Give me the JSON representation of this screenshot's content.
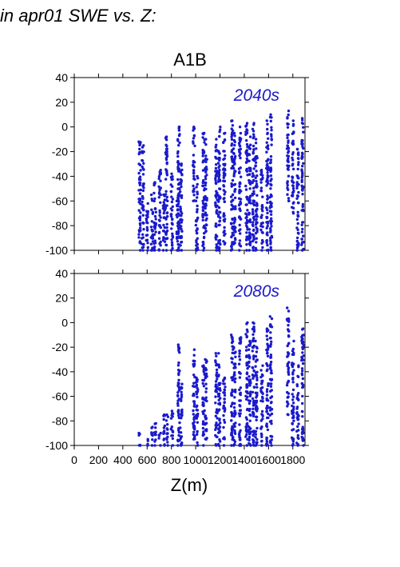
{
  "heading": "in apr01 SWE vs. Z:",
  "title": "A1B",
  "colors": {
    "points": "#1a1acc",
    "axis": "#000000"
  },
  "chart_data": [
    {
      "type": "scatter",
      "period_label": "2040s",
      "xlabel": "",
      "ylabel": "",
      "xlim": [
        0,
        1900
      ],
      "ylim": [
        -100,
        40
      ],
      "yticks": [
        40,
        20,
        0,
        -20,
        -40,
        -60,
        -80,
        -100
      ],
      "columns": [
        {
          "x": 540,
          "ymin": -100,
          "ymax": -12
        },
        {
          "x": 565,
          "ymin": -100,
          "ymax": -15
        },
        {
          "x": 600,
          "ymin": -100,
          "ymax": -62
        },
        {
          "x": 640,
          "ymin": -100,
          "ymax": -55
        },
        {
          "x": 665,
          "ymin": -100,
          "ymax": -45
        },
        {
          "x": 705,
          "ymin": -100,
          "ymax": -35
        },
        {
          "x": 740,
          "ymin": -100,
          "ymax": -55
        },
        {
          "x": 760,
          "ymin": -100,
          "ymax": -8
        },
        {
          "x": 805,
          "ymin": -100,
          "ymax": -38
        },
        {
          "x": 850,
          "ymin": -100,
          "ymax": -60
        },
        {
          "x": 860,
          "ymin": -100,
          "ymax": 0
        },
        {
          "x": 880,
          "ymin": -100,
          "ymax": -30
        },
        {
          "x": 985,
          "ymin": -60,
          "ymax": 0
        },
        {
          "x": 1010,
          "ymin": -100,
          "ymax": -40
        },
        {
          "x": 1065,
          "ymin": -100,
          "ymax": -5
        },
        {
          "x": 1085,
          "ymin": -85,
          "ymax": -10
        },
        {
          "x": 1170,
          "ymin": -100,
          "ymax": -10
        },
        {
          "x": 1195,
          "ymin": -100,
          "ymax": 0
        },
        {
          "x": 1235,
          "ymin": -95,
          "ymax": -5
        },
        {
          "x": 1300,
          "ymin": -100,
          "ymax": 5
        },
        {
          "x": 1320,
          "ymin": -95,
          "ymax": -5
        },
        {
          "x": 1365,
          "ymin": -100,
          "ymax": 0
        },
        {
          "x": 1420,
          "ymin": -100,
          "ymax": 3
        },
        {
          "x": 1445,
          "ymin": -100,
          "ymax": -8
        },
        {
          "x": 1475,
          "ymin": -100,
          "ymax": 3
        },
        {
          "x": 1500,
          "ymin": -100,
          "ymax": -10
        },
        {
          "x": 1545,
          "ymin": -100,
          "ymax": -35
        },
        {
          "x": 1590,
          "ymin": -100,
          "ymax": 5
        },
        {
          "x": 1620,
          "ymin": -100,
          "ymax": 10
        },
        {
          "x": 1760,
          "ymin": -60,
          "ymax": 13
        },
        {
          "x": 1800,
          "ymin": -70,
          "ymax": 5
        },
        {
          "x": 1840,
          "ymin": -100,
          "ymax": -18
        },
        {
          "x": 1880,
          "ymin": -100,
          "ymax": 7
        }
      ]
    },
    {
      "type": "scatter",
      "period_label": "2080s",
      "xlabel": "Z(m)",
      "ylabel": "",
      "xlim": [
        0,
        1900
      ],
      "ylim": [
        -100,
        40
      ],
      "yticks": [
        40,
        20,
        0,
        -20,
        -40,
        -60,
        -80,
        -100
      ],
      "xticks": [
        0,
        200,
        400,
        600,
        800,
        1000,
        1200,
        1400,
        1600,
        1800
      ],
      "columns": [
        {
          "x": 540,
          "ymin": -100,
          "ymax": -90
        },
        {
          "x": 600,
          "ymin": -100,
          "ymax": -95
        },
        {
          "x": 640,
          "ymin": -100,
          "ymax": -85
        },
        {
          "x": 665,
          "ymin": -100,
          "ymax": -82
        },
        {
          "x": 705,
          "ymin": -100,
          "ymax": -90
        },
        {
          "x": 740,
          "ymin": -100,
          "ymax": -75
        },
        {
          "x": 765,
          "ymin": -100,
          "ymax": -75
        },
        {
          "x": 805,
          "ymin": -100,
          "ymax": -72
        },
        {
          "x": 860,
          "ymin": -100,
          "ymax": -18
        },
        {
          "x": 880,
          "ymin": -100,
          "ymax": -50
        },
        {
          "x": 985,
          "ymin": -95,
          "ymax": -22
        },
        {
          "x": 1010,
          "ymin": -100,
          "ymax": -45
        },
        {
          "x": 1065,
          "ymin": -100,
          "ymax": -35
        },
        {
          "x": 1085,
          "ymin": -95,
          "ymax": -30
        },
        {
          "x": 1170,
          "ymin": -100,
          "ymax": -25
        },
        {
          "x": 1195,
          "ymin": -100,
          "ymax": -25
        },
        {
          "x": 1235,
          "ymin": -100,
          "ymax": -45
        },
        {
          "x": 1300,
          "ymin": -100,
          "ymax": -10
        },
        {
          "x": 1320,
          "ymin": -100,
          "ymax": -20
        },
        {
          "x": 1365,
          "ymin": -100,
          "ymax": -12
        },
        {
          "x": 1420,
          "ymin": -100,
          "ymax": 0
        },
        {
          "x": 1445,
          "ymin": -100,
          "ymax": -15
        },
        {
          "x": 1475,
          "ymin": -100,
          "ymax": 0
        },
        {
          "x": 1500,
          "ymin": -100,
          "ymax": -15
        },
        {
          "x": 1545,
          "ymin": -100,
          "ymax": -35
        },
        {
          "x": 1590,
          "ymin": -100,
          "ymax": -5
        },
        {
          "x": 1620,
          "ymin": -100,
          "ymax": 5
        },
        {
          "x": 1760,
          "ymin": -75,
          "ymax": 12
        },
        {
          "x": 1800,
          "ymin": -100,
          "ymax": -15
        },
        {
          "x": 1840,
          "ymin": -100,
          "ymax": -35
        },
        {
          "x": 1880,
          "ymin": -100,
          "ymax": -5
        }
      ]
    }
  ]
}
